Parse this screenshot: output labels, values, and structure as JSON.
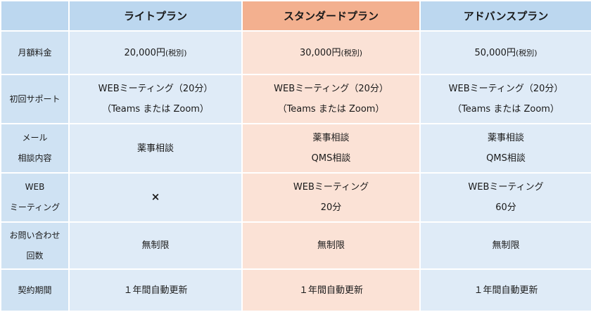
{
  "plans": [
    {
      "name": "ライトプラン"
    },
    {
      "name": "スタンダードプラン"
    },
    {
      "name": "アドバンスプラン"
    }
  ],
  "rows": {
    "monthly_fee": {
      "label": "月額料金",
      "light": {
        "price": "20,000円",
        "note": "(税別)"
      },
      "standard": {
        "price": "30,000円",
        "note": "(税別)"
      },
      "advance": {
        "price": "50,000円",
        "note": "(税別)"
      }
    },
    "initial_support": {
      "label": "初回サポート",
      "light": [
        "WEBミーティング（20分）",
        "（Teams または Zoom）"
      ],
      "standard": [
        "WEBミーティング（20分）",
        "（Teams または Zoom）"
      ],
      "advance": [
        "WEBミーティング（20分）",
        "（Teams または Zoom）"
      ]
    },
    "mail_consult": {
      "label": [
        "メール",
        "相談内容"
      ],
      "light": [
        "薬事相談"
      ],
      "standard": [
        "薬事相談",
        "QMS相談"
      ],
      "advance": [
        "薬事相談",
        "QMS相談"
      ]
    },
    "web_meeting": {
      "label": [
        "WEB",
        "ミーティング"
      ],
      "light": "×",
      "standard": [
        "WEBミーティング",
        "20分"
      ],
      "advance": [
        "WEBミーティング",
        "60分"
      ]
    },
    "inquiries": {
      "label": [
        "お問い合わせ",
        "回数"
      ],
      "light": "無制限",
      "standard": "無制限",
      "advance": "無制限"
    },
    "contract": {
      "label": "契約期間",
      "light": "１年間自動更新",
      "standard": "１年間自動更新",
      "advance": "１年間自動更新"
    }
  }
}
